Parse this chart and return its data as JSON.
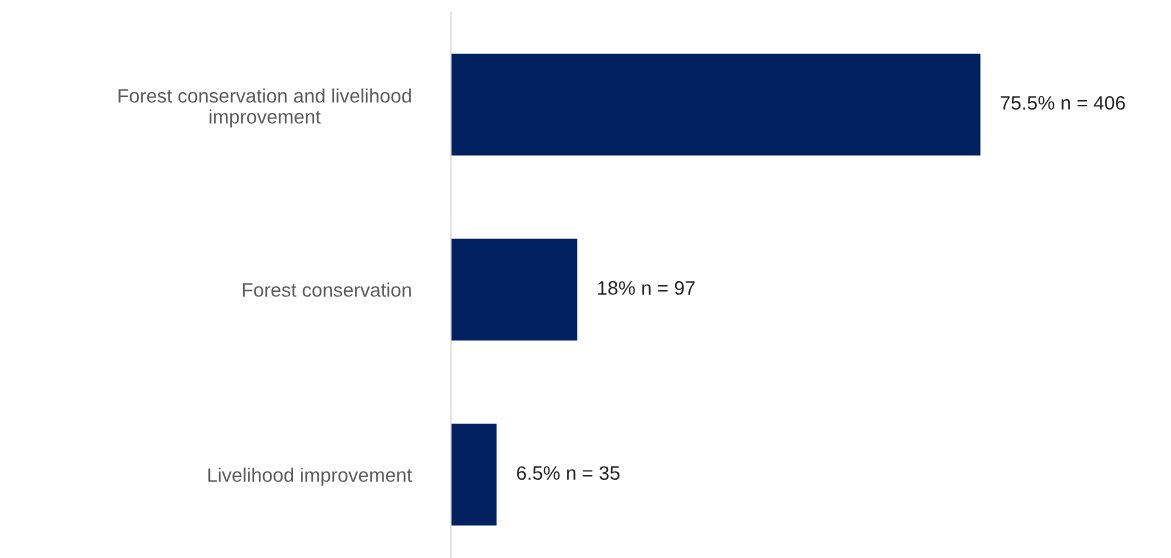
{
  "chart_data": {
    "type": "bar",
    "orientation": "horizontal",
    "categories": [
      "Forest conservation and livelihood\nimprovement",
      "Forest conservation",
      "Livelihood improvement"
    ],
    "values": [
      75.5,
      18,
      6.5
    ],
    "value_labels": [
      "75.5% n = 406",
      "18% n = 97",
      "6.5% n = 35"
    ],
    "color": "#002060",
    "tick_labels": "y",
    "grid": false,
    "legend": false
  }
}
